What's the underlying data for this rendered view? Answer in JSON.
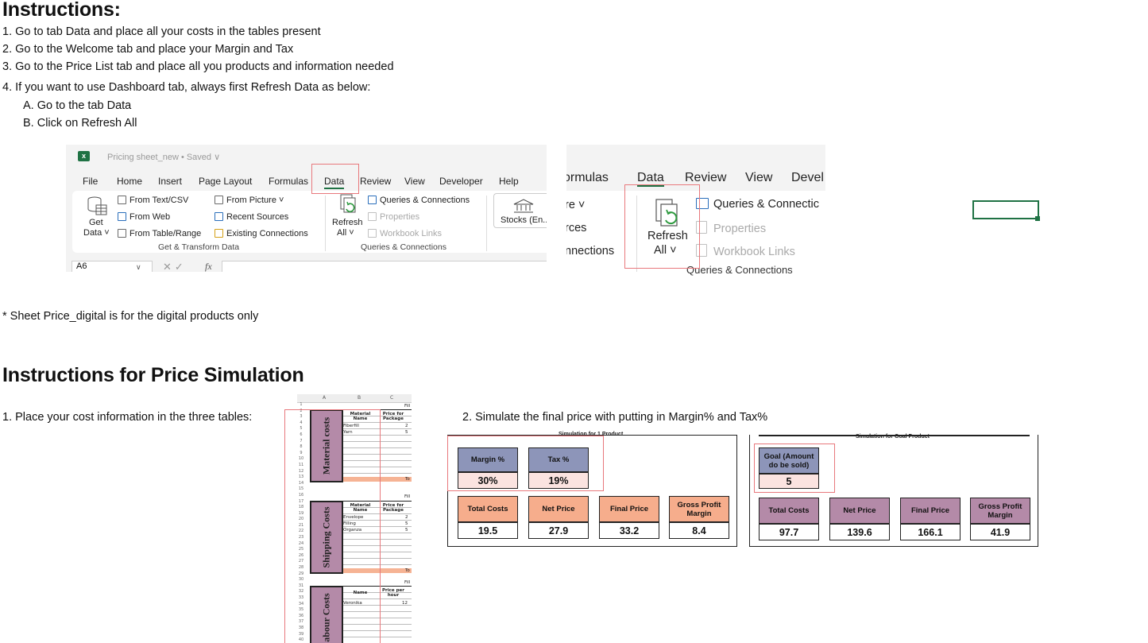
{
  "instructions": {
    "title": "Instructions:",
    "steps": [
      "1. Go to tab Data and place all your costs in the tables present",
      "2. Go to the Welcome tab and place your Margin and Tax",
      "3. Go to the Price List tab and place all you products and information needed",
      "4. If you want to use Dashboard tab, always first Refresh Data as below:"
    ],
    "substeps": [
      "A. Go to the tab Data",
      "B. Click on Refresh All"
    ],
    "note": "* Sheet Price_digital is for the digital products only"
  },
  "ribbon": {
    "file_title": "Pricing sheet_new • Saved ∨",
    "tabs": [
      "File",
      "Home",
      "Insert",
      "Page Layout",
      "Formulas",
      "Data",
      "Review",
      "View",
      "Developer",
      "Help"
    ],
    "get_data": "Get",
    "get_data_2": "Data ˅",
    "from_text": "From Text/CSV",
    "from_web": "From Web",
    "from_table": "From Table/Range",
    "from_picture": "From Picture ˅",
    "recent_sources": "Recent Sources",
    "existing_connections": "Existing Connections",
    "group_get_transform": "Get & Transform Data",
    "refresh": "Refresh",
    "refresh_all": "All ˅",
    "queries_connections": "Queries & Connections",
    "properties": "Properties",
    "workbook_links": "Workbook Links",
    "group_queries": "Queries & Connections",
    "stocks": "Stocks (En...",
    "name_box": "A6",
    "fx": "fx"
  },
  "ribbon_zoom": {
    "tab_formulas": "ormulas",
    "tab_data": "Data",
    "tab_review": "Review",
    "tab_view": "View",
    "tab_devel": "Devel",
    "left_re": "re ˅",
    "left_rces": "rces",
    "left_nnections": "nnections",
    "refresh": "Refresh",
    "refresh_all": "All ˅",
    "queries_connections": "Queries & Connectic",
    "properties": "Properties",
    "workbook_links": "Workbook Links",
    "group_queries": "Queries & Connections"
  },
  "simulation": {
    "title": "Instructions for Price Simulation",
    "step1": "1. Place your cost information in the three tables:",
    "step2": "2. Simulate the final price with putting in Margin% and Tax%"
  },
  "mini_sheet": {
    "cols": [
      "A",
      "B",
      "C"
    ],
    "fill": "Fill",
    "material_label": "Material costs",
    "shipping_label": "Shipping Costs",
    "labour_label": "abour Costs",
    "hdr_material_name": "Material Name",
    "hdr_price_package": "Price for Package",
    "hdr_name": "Name",
    "hdr_price_hour": "Price per hour",
    "material_rows": [
      [
        "Fiberfill",
        "2"
      ],
      [
        "Yarn",
        "5"
      ]
    ],
    "shipping_rows": [
      [
        "Envelope",
        "2"
      ],
      [
        "Filling",
        "5"
      ],
      [
        "Organza",
        "5"
      ]
    ],
    "labour_rows": [
      [
        "Veronika",
        "12"
      ]
    ],
    "total_short": "To"
  },
  "sim_product": {
    "title": "Simulation for 1 Product",
    "margin_label": "Margin %",
    "margin_value": "30%",
    "tax_label": "Tax %",
    "tax_value": "19%",
    "total_costs_label": "Total Costs",
    "total_costs_value": "19.5",
    "net_price_label": "Net Price",
    "net_price_value": "27.9",
    "final_price_label": "Final Price",
    "final_price_value": "33.2",
    "gross_margin_label": "Gross Profit Margin",
    "gross_margin_value": "8.4"
  },
  "sim_goal": {
    "title": "Simulation for Goal Product",
    "goal_label": "Goal (Amount do be sold)",
    "goal_value": "5",
    "total_costs_label": "Total Costs",
    "total_costs_value": "97.7",
    "net_price_label": "Net Price",
    "net_price_value": "139.6",
    "final_price_label": "Final Price",
    "final_price_value": "166.1",
    "gross_margin_label": "Gross Profit Margin",
    "gross_margin_value": "41.9"
  },
  "colors": {
    "excel_green": "#1f7244",
    "highlight_red": "#e8787c",
    "header_blue": "#8d95b9",
    "header_orange": "#f6ad8c",
    "header_purple": "#b48aa8",
    "value_pink": "#fbe3e0"
  }
}
